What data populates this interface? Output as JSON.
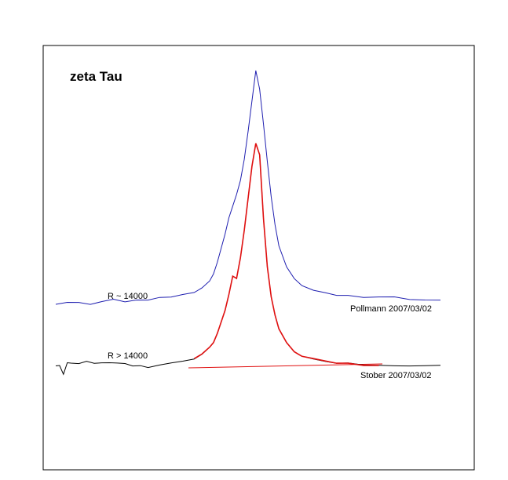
{
  "chart_data": {
    "type": "line",
    "title": "zeta Tau",
    "xlabel": "",
    "ylabel": "",
    "grid": false,
    "legend": "none",
    "annotations": {
      "upper_resolution": "R ~ 14000",
      "upper_observer": "Pollmann 2007/03/02",
      "lower_resolution": "R > 14000",
      "lower_observer": "Stober 2007/03/02"
    },
    "series": [
      {
        "color": "#1f1fb0",
        "x": [
          0,
          3,
          6,
          9,
          12,
          15,
          18,
          21,
          24,
          27,
          30,
          33,
          36,
          38,
          40,
          41,
          42,
          43,
          44,
          45,
          46,
          47,
          48,
          49,
          50,
          51,
          52,
          53,
          54,
          55,
          56,
          57,
          58,
          60,
          62,
          64,
          67,
          70,
          73,
          76,
          80,
          84,
          88,
          92,
          96,
          100
        ],
        "y": [
          0.0,
          0.01,
          0.01,
          0.0,
          0.01,
          0.02,
          0.01,
          0.02,
          0.02,
          0.03,
          0.03,
          0.04,
          0.05,
          0.07,
          0.1,
          0.13,
          0.18,
          0.24,
          0.3,
          0.37,
          0.42,
          0.47,
          0.53,
          0.62,
          0.74,
          0.87,
          1.0,
          0.92,
          0.77,
          0.61,
          0.46,
          0.34,
          0.25,
          0.16,
          0.11,
          0.08,
          0.06,
          0.05,
          0.04,
          0.04,
          0.03,
          0.03,
          0.03,
          0.02,
          0.02,
          0.02
        ]
      },
      {
        "color": "#000000",
        "x": [
          0,
          1,
          2,
          3,
          4,
          6,
          8,
          10,
          12,
          14,
          16,
          18,
          20,
          22,
          24,
          27,
          30,
          33,
          36,
          38,
          40,
          41,
          42,
          43,
          44,
          45,
          46,
          47,
          48,
          49,
          50,
          51,
          52,
          53,
          54,
          55,
          56,
          57,
          58,
          60,
          62,
          64,
          67,
          70,
          73,
          76,
          80,
          84,
          88,
          92,
          96,
          100
        ],
        "y": [
          0.0,
          0.0,
          -0.04,
          0.01,
          0.01,
          0.01,
          0.02,
          0.01,
          0.01,
          0.01,
          0.01,
          0.01,
          0.0,
          0.0,
          -0.01,
          0.0,
          0.01,
          0.02,
          0.03,
          0.05,
          0.08,
          0.1,
          0.14,
          0.19,
          0.24,
          0.31,
          0.39,
          0.38,
          0.47,
          0.59,
          0.73,
          0.87,
          0.97,
          0.92,
          0.64,
          0.43,
          0.3,
          0.22,
          0.16,
          0.1,
          0.06,
          0.04,
          0.03,
          0.02,
          0.01,
          0.01,
          0.0,
          0.0,
          0.0,
          0.0,
          0.0,
          0.0
        ]
      }
    ]
  }
}
